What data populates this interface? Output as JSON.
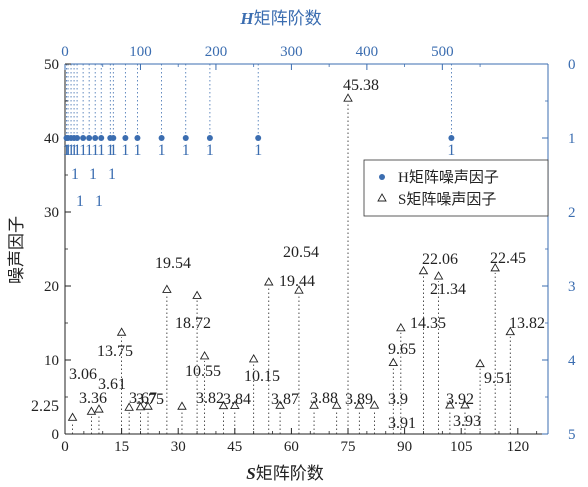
{
  "chart_data": {
    "type": "scatter",
    "title": "",
    "top_axis": {
      "label_italic": "H",
      "label_rest": "矩阵阶数",
      "ticks": [
        0,
        100,
        200,
        300,
        400,
        500
      ],
      "range": [
        0,
        640
      ]
    },
    "bottom_axis": {
      "label_italic": "S",
      "label_rest": "矩阵阶数",
      "ticks": [
        0,
        15,
        30,
        45,
        60,
        75,
        90,
        105,
        120
      ],
      "range": [
        0,
        128
      ]
    },
    "left_axis": {
      "label": "噪声因子",
      "ticks": [
        0,
        10,
        20,
        30,
        40,
        50
      ],
      "range": [
        0,
        50
      ]
    },
    "right_axis": {
      "ticks": [
        0,
        1,
        2,
        3,
        4,
        5
      ],
      "range": [
        0,
        5
      ],
      "inverted": true
    },
    "legend": {
      "placement": "right-middle",
      "entries": [
        "H矩阵噪声因子",
        "S矩阵噪声因子"
      ]
    },
    "series": [
      {
        "name": "H矩阵噪声因子",
        "marker": "filled-circle",
        "color": "#3b6db0",
        "x": [
          2,
          4,
          8,
          12,
          16,
          24,
          32,
          40,
          48,
          60,
          64,
          80,
          96,
          128,
          160,
          192,
          256,
          512
        ],
        "y": [
          40,
          40,
          40,
          40,
          40,
          40,
          40,
          40,
          40,
          40,
          40,
          40,
          40,
          40,
          40,
          40,
          40,
          40
        ],
        "value_labels": [
          "1",
          "1",
          "1",
          "1",
          "1",
          "1",
          "1",
          "1",
          "1",
          "1",
          "1",
          "1",
          "1",
          "1",
          "1",
          "1",
          "1",
          "1"
        ]
      },
      {
        "name": "S矩阵噪声因子",
        "marker": "open-triangle",
        "color": "#222222",
        "x": [
          2,
          7,
          9,
          15,
          17,
          20,
          22,
          27,
          31,
          35,
          37,
          42,
          45,
          50,
          54,
          57,
          62,
          66,
          72,
          75,
          78,
          82,
          87,
          89,
          95,
          99,
          102,
          106,
          110,
          114,
          118
        ],
        "y": [
          2.25,
          3.06,
          3.36,
          13.75,
          3.61,
          3.67,
          3.75,
          19.54,
          3.75,
          18.72,
          10.55,
          3.82,
          3.84,
          10.15,
          20.54,
          3.87,
          19.44,
          3.88,
          3.88,
          45.38,
          3.89,
          3.9,
          9.65,
          14.35,
          22.06,
          21.34,
          3.91,
          3.92,
          9.51,
          22.45,
          13.82
        ]
      }
    ],
    "s_labels": [
      "2.25",
      "3.06",
      "3.36",
      "13.75",
      "3.61",
      "3.67",
      "3.75",
      "19.54",
      "18.72",
      "10.55",
      "3.82",
      "3.84",
      "10.15",
      "20.54",
      "3.87",
      "19.44",
      "3.88",
      "45.38",
      "3.89",
      "3.9",
      "3.91",
      "9.65",
      "14.35",
      "22.06",
      "21.34",
      "3.92",
      "3.93",
      "9.51",
      "22.45",
      "13.82"
    ],
    "extra_h_labels": [
      "1",
      "1",
      "1",
      "1",
      "1",
      "1",
      "1"
    ]
  }
}
